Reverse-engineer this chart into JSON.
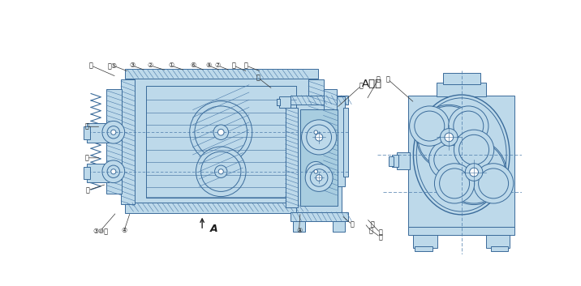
{
  "bg": "#ffffff",
  "fill": "#bdd9ea",
  "fill2": "#a8cde0",
  "stroke": "#3a6b9a",
  "stroke2": "#2255aa",
  "hatch_color": "#4a7aaa",
  "text_color": "#1a1a1a",
  "title": "A视图",
  "fig_w": 7.16,
  "fig_h": 3.53,
  "dpi": 100,
  "lw": 0.7,
  "lw2": 1.0
}
